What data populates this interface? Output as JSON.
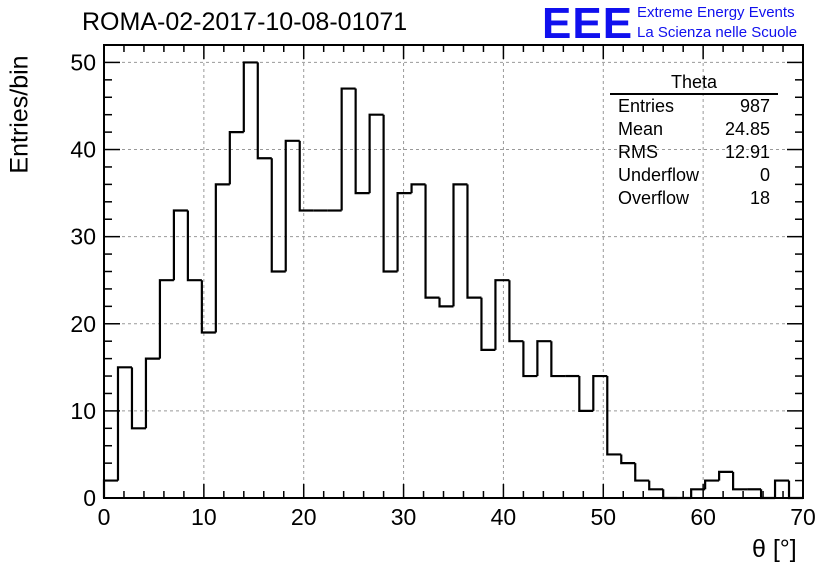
{
  "chart_data": {
    "type": "histogram",
    "title": "ROMA-02-2017-10-08-01071",
    "xlabel": "θ [°]",
    "ylabel": "Entries/bin",
    "xlim": [
      0,
      70
    ],
    "ylim": [
      0,
      52
    ],
    "grid": true,
    "bin_width": 1.4,
    "x_ticks": [
      "0",
      "10",
      "20",
      "30",
      "40",
      "50",
      "60",
      "70"
    ],
    "y_ticks": [
      "0",
      "10",
      "20",
      "30",
      "40",
      "50"
    ],
    "values": [
      2,
      15,
      8,
      16,
      25,
      33,
      25,
      19,
      36,
      42,
      50,
      39,
      26,
      41,
      33,
      33,
      33,
      47,
      35,
      44,
      26,
      35,
      36,
      23,
      22,
      36,
      23,
      17,
      25,
      18,
      14,
      18,
      14,
      14,
      10,
      14,
      5,
      4,
      2,
      1,
      0,
      0,
      1,
      2,
      3,
      1,
      1,
      0,
      2,
      0
    ],
    "stats": {
      "title": "Theta",
      "rows": [
        {
          "label": "Entries",
          "value": "987"
        },
        {
          "label": "Mean",
          "value": "24.85"
        },
        {
          "label": "RMS",
          "value": "12.91"
        },
        {
          "label": "Underflow",
          "value": "0"
        },
        {
          "label": "Overflow",
          "value": "18"
        }
      ]
    }
  },
  "logo": {
    "text": "EEE",
    "line1": "Extreme Energy Events",
    "line2": "La Scienza nelle Scuole",
    "color": "#1010ee"
  }
}
